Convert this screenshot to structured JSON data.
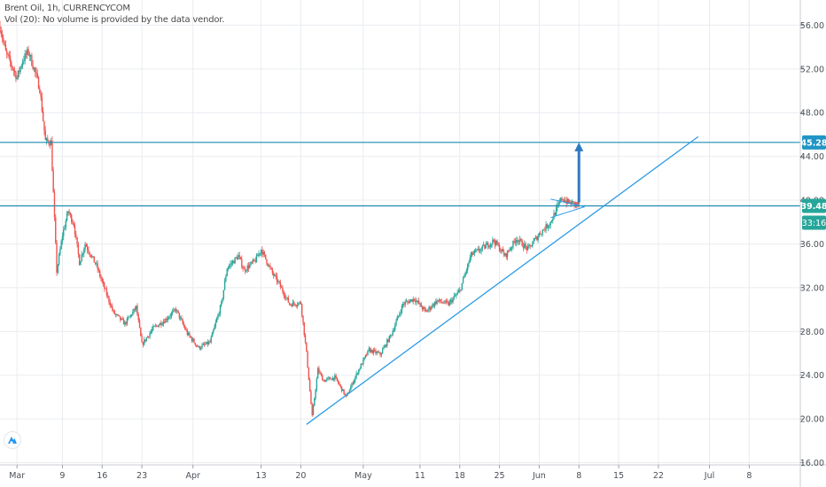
{
  "header": {
    "symbol_line": "Brent Oil, 1h, CURRENCYCOM",
    "volume_line": "Vol (20): No volume is provided by the data vendor."
  },
  "colors": {
    "up": "#26a69a",
    "down": "#ef5350",
    "grid": "#e9ecef",
    "level_line": "#1e8bb3",
    "trend_line": "#2e9be6",
    "arrow": "#2f7bbf",
    "price_badge": "#26a69a",
    "level_badge": "#2196c6"
  },
  "chart_data": {
    "type": "candlestick",
    "title": "",
    "xlabel": "",
    "ylabel": "",
    "ylim": [
      15.8,
      58.3
    ],
    "y_ticks": [
      "56.00",
      "52.00",
      "48.00",
      "44.00",
      "40.00",
      "36.00",
      "32.00",
      "28.00",
      "24.00",
      "20.00",
      "16.00"
    ],
    "y_tick_values": [
      56,
      52,
      48,
      44,
      40,
      36,
      32,
      28,
      24,
      20,
      16
    ],
    "x_ticks": [
      "Mar",
      "9",
      "16",
      "23",
      "Apr",
      "13",
      "20",
      "May",
      "11",
      "18",
      "25",
      "Jun",
      "8",
      "15",
      "22",
      "Jul",
      "8"
    ],
    "x_tick_dates": [
      "2020-03-01",
      "2020-03-09",
      "2020-03-16",
      "2020-03-23",
      "2020-04-01",
      "2020-04-13",
      "2020-04-20",
      "2020-05-01",
      "2020-05-11",
      "2020-05-18",
      "2020-05-25",
      "2020-06-01",
      "2020-06-08",
      "2020-06-15",
      "2020-06-22",
      "2020-07-01",
      "2020-07-08"
    ],
    "x_range": [
      "2020-02-27",
      "2020-07-17"
    ],
    "series": [
      {
        "name": "",
        "path": [
          [
            "2020-02-27",
            55.9
          ],
          [
            "2020-02-28",
            53.5
          ],
          [
            "2020-03-01",
            51.2
          ],
          [
            "2020-03-02",
            52.8
          ],
          [
            "2020-03-03",
            53.6
          ],
          [
            "2020-03-04",
            52.0
          ],
          [
            "2020-03-05",
            50.2
          ],
          [
            "2020-03-06",
            45.4
          ],
          [
            "2020-03-07",
            45.3
          ],
          [
            "2020-03-08",
            33.5
          ],
          [
            "2020-03-09",
            36.8
          ],
          [
            "2020-03-10",
            39.0
          ],
          [
            "2020-03-11",
            37.8
          ],
          [
            "2020-03-12",
            34.3
          ],
          [
            "2020-03-13",
            36.0
          ],
          [
            "2020-03-15",
            34.0
          ],
          [
            "2020-03-16",
            32.5
          ],
          [
            "2020-03-18",
            29.7
          ],
          [
            "2020-03-20",
            28.7
          ],
          [
            "2020-03-22",
            30.2
          ],
          [
            "2020-03-23",
            26.8
          ],
          [
            "2020-03-25",
            28.3
          ],
          [
            "2020-03-27",
            29.0
          ],
          [
            "2020-03-29",
            30.0
          ],
          [
            "2020-03-31",
            27.8
          ],
          [
            "2020-04-02",
            26.5
          ],
          [
            "2020-04-04",
            27.0
          ],
          [
            "2020-04-06",
            30.5
          ],
          [
            "2020-04-07",
            33.8
          ],
          [
            "2020-04-09",
            34.9
          ],
          [
            "2020-04-10",
            33.6
          ],
          [
            "2020-04-12",
            34.5
          ],
          [
            "2020-04-13",
            35.5
          ],
          [
            "2020-04-15",
            33.3
          ],
          [
            "2020-04-16",
            32.5
          ],
          [
            "2020-04-18",
            30.5
          ],
          [
            "2020-04-20",
            30.6
          ],
          [
            "2020-04-21",
            26.0
          ],
          [
            "2020-04-22",
            20.2
          ],
          [
            "2020-04-23",
            24.5
          ],
          [
            "2020-04-24",
            23.5
          ],
          [
            "2020-04-26",
            23.8
          ],
          [
            "2020-04-28",
            22.0
          ],
          [
            "2020-04-30",
            24.3
          ],
          [
            "2020-05-02",
            26.3
          ],
          [
            "2020-05-04",
            25.9
          ],
          [
            "2020-05-06",
            27.8
          ],
          [
            "2020-05-08",
            30.5
          ],
          [
            "2020-05-10",
            31.0
          ],
          [
            "2020-05-12",
            29.8
          ],
          [
            "2020-05-14",
            30.8
          ],
          [
            "2020-05-16",
            30.5
          ],
          [
            "2020-05-18",
            31.7
          ],
          [
            "2020-05-20",
            35.0
          ],
          [
            "2020-05-22",
            35.6
          ],
          [
            "2020-05-24",
            36.3
          ],
          [
            "2020-05-26",
            34.9
          ],
          [
            "2020-05-28",
            36.5
          ],
          [
            "2020-05-30",
            35.5
          ],
          [
            "2020-06-01",
            36.9
          ],
          [
            "2020-06-03",
            38.0
          ],
          [
            "2020-06-05",
            40.2
          ],
          [
            "2020-06-06",
            39.8
          ],
          [
            "2020-06-08",
            39.6
          ]
        ]
      }
    ],
    "horizontal_levels": [
      {
        "value": 45.28,
        "label": "45.28"
      },
      {
        "value": 39.48,
        "label": "39.48"
      }
    ],
    "last_price": {
      "value": 39.48,
      "label": "39.48",
      "countdown": "33:16"
    },
    "trend_line": {
      "from": [
        "2020-04-21",
        19.5
      ],
      "to": [
        "2020-06-29",
        45.8
      ]
    },
    "triangle_pattern": {
      "apex": [
        "2020-06-09",
        39.4
      ],
      "upper_start": [
        "2020-06-03",
        40.1
      ],
      "lower_start": [
        "2020-06-03",
        38.4
      ]
    },
    "arrow": {
      "date": "2020-06-08",
      "from": 39.8,
      "to": 45.28
    }
  }
}
